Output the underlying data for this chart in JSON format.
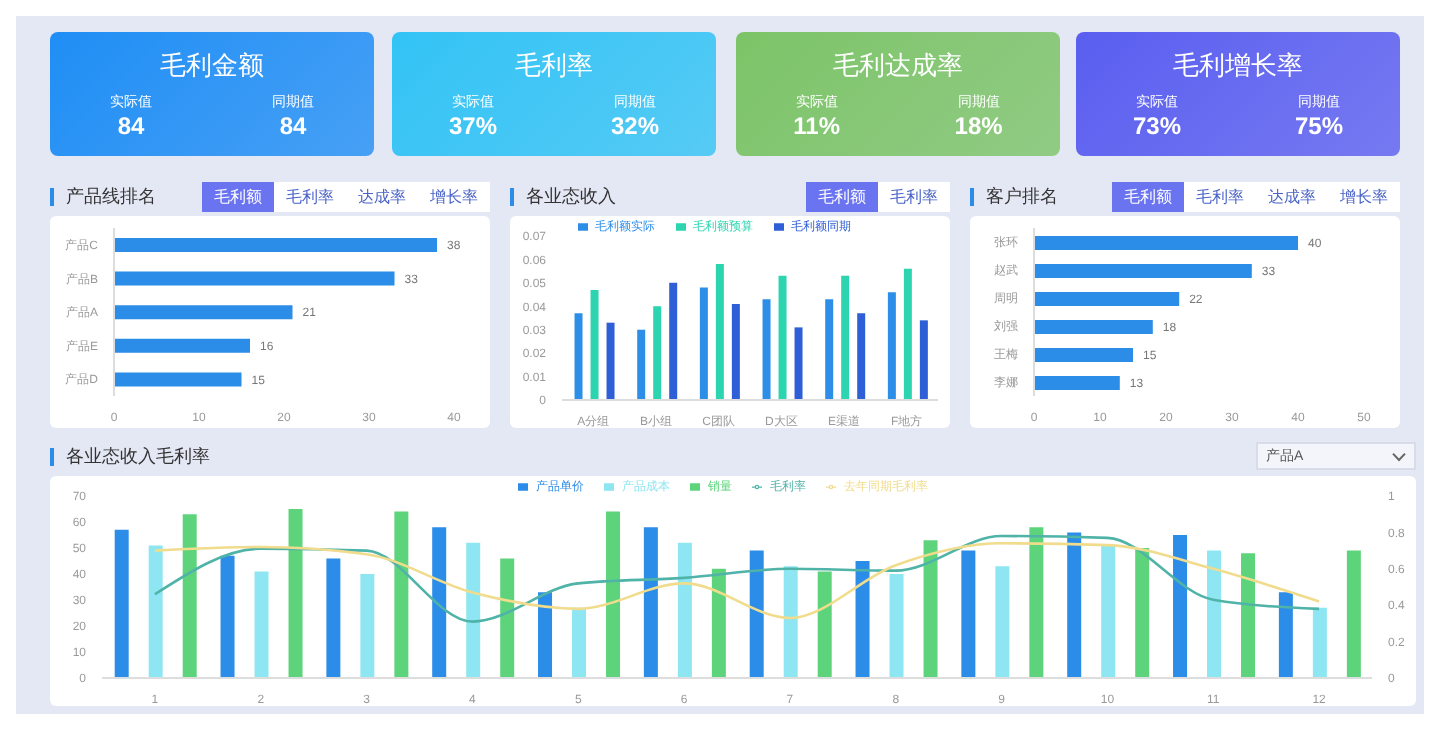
{
  "chart_data": [
    {
      "type": "other",
      "title": "毛利金额",
      "color": "#1f8ef5",
      "annotations": [
        "实际值",
        "84",
        "同期值",
        "84"
      ]
    },
    {
      "type": "other",
      "title": "毛利率",
      "color": "#32c3f5",
      "annotations": [
        "实际值",
        "37%",
        "同期值",
        "32%"
      ]
    },
    {
      "type": "other",
      "title": "毛利达成率",
      "color": "#7cc468",
      "annotations": [
        "实际值",
        "11%",
        "同期值",
        "18%"
      ]
    },
    {
      "type": "other",
      "title": "毛利增长率",
      "color": "#5a5ef0",
      "annotations": [
        "实际值",
        "73%",
        "同期值",
        "75%"
      ]
    },
    {
      "type": "bar",
      "orientation": "horizontal",
      "title": "产品线排名",
      "annotations": [
        "毛利额",
        "毛利率",
        "达成率",
        "增长率"
      ],
      "categories": [
        "产品C",
        "产品B",
        "产品A",
        "产品E",
        "产品D"
      ],
      "values": [
        38,
        33,
        21,
        16,
        15
      ],
      "color": "#2b8de8",
      "data_labels": true,
      "xlim": [
        0,
        40
      ],
      "xticks": [
        0,
        10,
        20,
        30,
        40
      ]
    },
    {
      "type": "bar",
      "title": "各业态收入",
      "annotations": [
        "毛利额",
        "毛利率"
      ],
      "categories": [
        "A分组",
        "B小组",
        "C团队",
        "D大区",
        "E渠道",
        "F地方"
      ],
      "legend": "top",
      "ylim": [
        0,
        0.07
      ],
      "yticks": [
        0,
        0.01,
        0.02,
        0.03,
        0.04,
        0.05,
        0.06,
        0.07
      ],
      "series": [
        {
          "name": "毛利额实际",
          "color": "#2d8ee8",
          "values": [
            0.037,
            0.03,
            0.048,
            0.043,
            0.043,
            0.046
          ]
        },
        {
          "name": "毛利额预算",
          "color": "#2dd4b0",
          "values": [
            0.047,
            0.04,
            0.058,
            0.053,
            0.053,
            0.056
          ]
        },
        {
          "name": "毛利额同期",
          "color": "#2f5fd6",
          "values": [
            0.033,
            0.05,
            0.041,
            0.031,
            0.037,
            0.034
          ]
        }
      ]
    },
    {
      "type": "bar",
      "orientation": "horizontal",
      "title": "客户排名",
      "annotations": [
        "毛利额",
        "毛利率",
        "达成率",
        "增长率"
      ],
      "categories": [
        "张环",
        "赵武",
        "周明",
        "刘强",
        "王梅",
        "李娜"
      ],
      "values": [
        40,
        33,
        22,
        18,
        15,
        13
      ],
      "color": "#2b8de8",
      "data_labels": true,
      "xlim": [
        0,
        50
      ],
      "xticks": [
        0,
        10,
        20,
        30,
        40,
        50
      ]
    },
    {
      "type": "bar",
      "title": "各业态收入毛利率",
      "annotations": [
        "产品A"
      ],
      "categories": [
        "1",
        "2",
        "3",
        "4",
        "5",
        "6",
        "7",
        "8",
        "9",
        "10",
        "11",
        "12"
      ],
      "legend": "top",
      "marker": "none",
      "ylim": [
        0,
        70
      ],
      "yticks": [
        0,
        10,
        20,
        30,
        40,
        50,
        60,
        70
      ],
      "y2lim": [
        0,
        1
      ],
      "y2ticks": [
        0,
        0.2,
        0.4,
        0.6,
        0.8,
        1
      ],
      "series": [
        {
          "name": "产品单价",
          "color": "#2b8de8",
          "values": [
            57,
            47,
            46,
            58,
            33,
            58,
            49,
            45,
            49,
            56,
            55,
            33
          ]
        },
        {
          "name": "产品成本",
          "color": "#8ee6f2",
          "values": [
            51,
            41,
            40,
            52,
            27,
            52,
            43,
            40,
            43,
            51,
            49,
            27
          ]
        },
        {
          "name": "销量",
          "color": "#5dd47c",
          "values": [
            63,
            65,
            64,
            46,
            64,
            42,
            41,
            53,
            58,
            50,
            48,
            49
          ]
        },
        {
          "name": "毛利率",
          "type": "line",
          "axis": "y2",
          "color": "#4fb3a8",
          "values": [
            0.46,
            0.71,
            0.7,
            0.31,
            0.52,
            0.55,
            0.6,
            0.59,
            0.78,
            0.77,
            0.43,
            0.38
          ]
        },
        {
          "name": "去年同期毛利率",
          "type": "line",
          "axis": "y2",
          "color": "#f0dc8c",
          "values": [
            0.7,
            0.72,
            0.68,
            0.47,
            0.38,
            0.52,
            0.33,
            0.62,
            0.74,
            0.73,
            0.6,
            0.42
          ]
        }
      ]
    }
  ]
}
